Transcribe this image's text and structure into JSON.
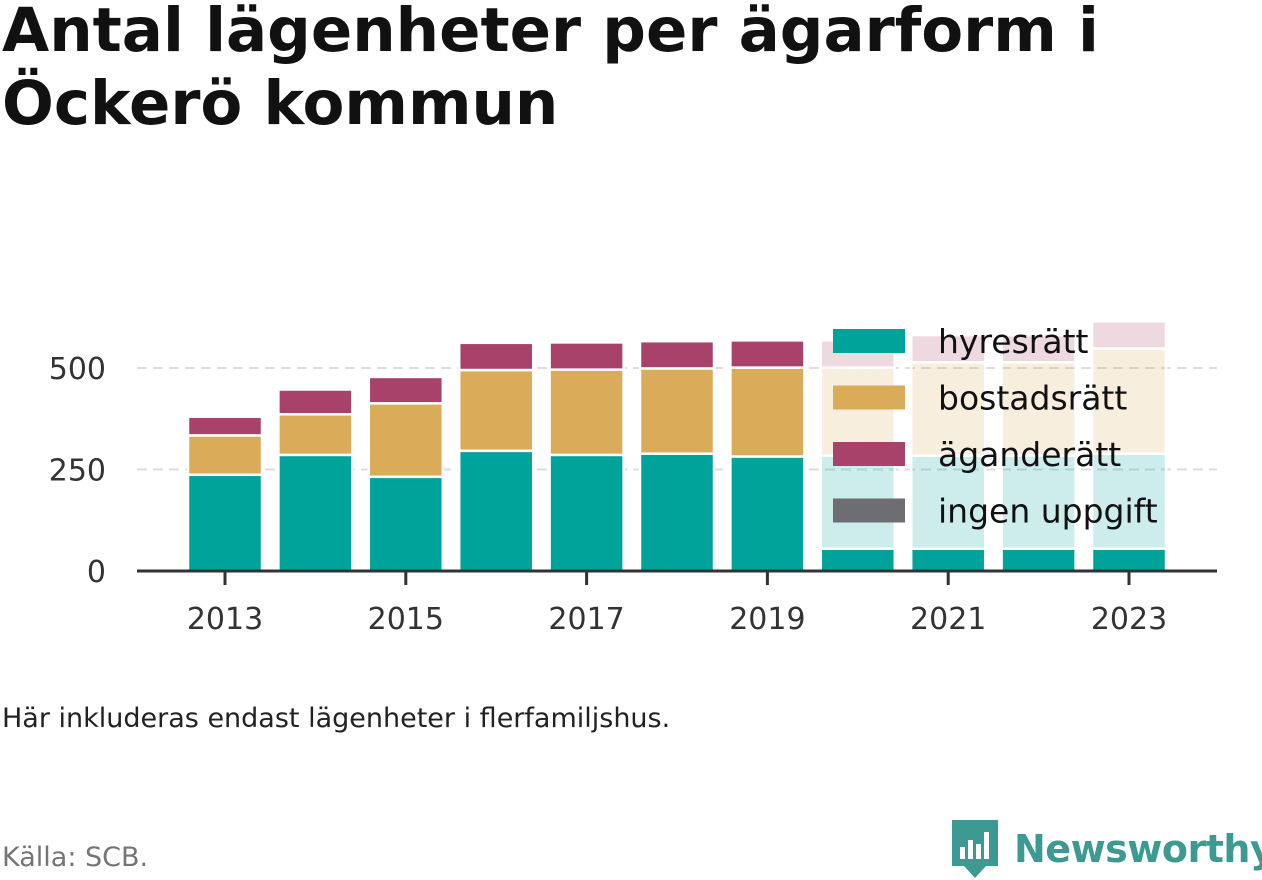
{
  "title_lines": [
    "Antal lägenheter per ägarform i",
    "Öckerö kommun"
  ],
  "note": "Här inkluderas endast lägenheter i flerfamiljshus.",
  "source": "Källa: SCB.",
  "brand": "Newsworthy",
  "brand_icon": "newsworthy-logo-icon",
  "colors": {
    "hyresratt": "#00a39a",
    "bostadsratt": "#daac5a",
    "aganderatt": "#a8426a",
    "ingen_uppgift": "#6e6d72",
    "grid": "#dddddd",
    "axis": "#333333",
    "text": "#333333",
    "brand": "#3d9a92"
  },
  "chart_data": {
    "type": "bar",
    "stacked": true,
    "title": "Antal lägenheter per ägarform i Öckerö kommun",
    "categories": [
      "2013",
      "2014",
      "2015",
      "2016",
      "2017",
      "2018",
      "2019",
      "2020",
      "2021",
      "2022",
      "2023"
    ],
    "x_tick_labels": [
      "2013",
      "2015",
      "2017",
      "2019",
      "2021",
      "2023"
    ],
    "xlabel": "",
    "ylabel": "",
    "ylim": [
      0,
      600
    ],
    "y_ticks": [
      0,
      250,
      500
    ],
    "grid": true,
    "legend_position": "top-right",
    "faded_from_category": "2020",
    "series": [
      {
        "name": "hyresrätt",
        "color": "#00a39a",
        "values": [
          237,
          286,
          232,
          296,
          286,
          289,
          282,
          55,
          55,
          55,
          55
        ],
        "faded_values": [
          0,
          0,
          0,
          0,
          0,
          0,
          0,
          229,
          229,
          229,
          234
        ]
      },
      {
        "name": "bostadsrätt",
        "color": "#daac5a",
        "values": [
          97,
          100,
          181,
          199,
          210,
          210,
          219,
          0,
          0,
          0,
          0
        ],
        "faded_values": [
          0,
          0,
          0,
          0,
          0,
          0,
          0,
          217,
          230,
          230,
          259
        ]
      },
      {
        "name": "äganderätt",
        "color": "#a8426a",
        "values": [
          46,
          61,
          65,
          67,
          67,
          67,
          67,
          0,
          0,
          0,
          0
        ],
        "faded_values": [
          0,
          0,
          0,
          0,
          0,
          0,
          0,
          67,
          67,
          67,
          67
        ]
      },
      {
        "name": "ingen uppgift",
        "color": "#6e6d72",
        "values": [
          5,
          0,
          0,
          0,
          0,
          0,
          0,
          0,
          0,
          0,
          0
        ],
        "faded_values": [
          0,
          0,
          0,
          0,
          0,
          0,
          0,
          0,
          0,
          0,
          0
        ]
      }
    ]
  }
}
